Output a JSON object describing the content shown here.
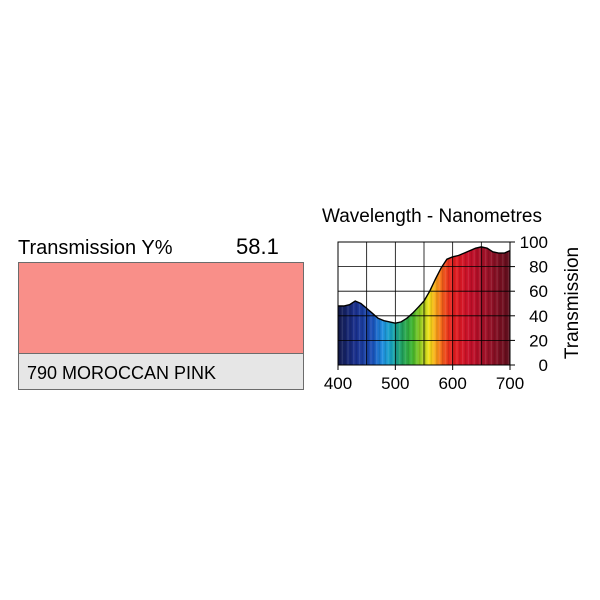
{
  "transmission": {
    "label": "Transmission Y%",
    "value": "58.1"
  },
  "filter": {
    "name": "790 MOROCCAN PINK",
    "swatch_color": "#f98f89",
    "name_bar_color": "#e6e6e6"
  },
  "chart_data": {
    "type": "area",
    "title": "Wavelength - Nanometres",
    "ylabel": "Transmission",
    "xlim": [
      400,
      700
    ],
    "ylim": [
      0,
      100
    ],
    "grid": true,
    "x_ticks": [
      "400",
      "500",
      "600",
      "700"
    ],
    "y_ticks": [
      "0",
      "20",
      "40",
      "60",
      "80",
      "100"
    ],
    "series": [
      {
        "x": [
          400,
          410,
          420,
          430,
          440,
          450,
          460,
          470,
          480,
          490,
          500,
          510,
          520,
          530,
          540,
          550,
          560,
          570,
          580,
          590,
          600,
          610,
          620,
          630,
          640,
          650,
          660,
          670,
          680,
          690,
          700
        ],
        "y": [
          48,
          48,
          49,
          52,
          50,
          46,
          42,
          38,
          36,
          35,
          34,
          35,
          38,
          42,
          47,
          52,
          60,
          70,
          79,
          86,
          88,
          89,
          91,
          93,
          95,
          96,
          95,
          92,
          91,
          91,
          93
        ]
      }
    ]
  }
}
